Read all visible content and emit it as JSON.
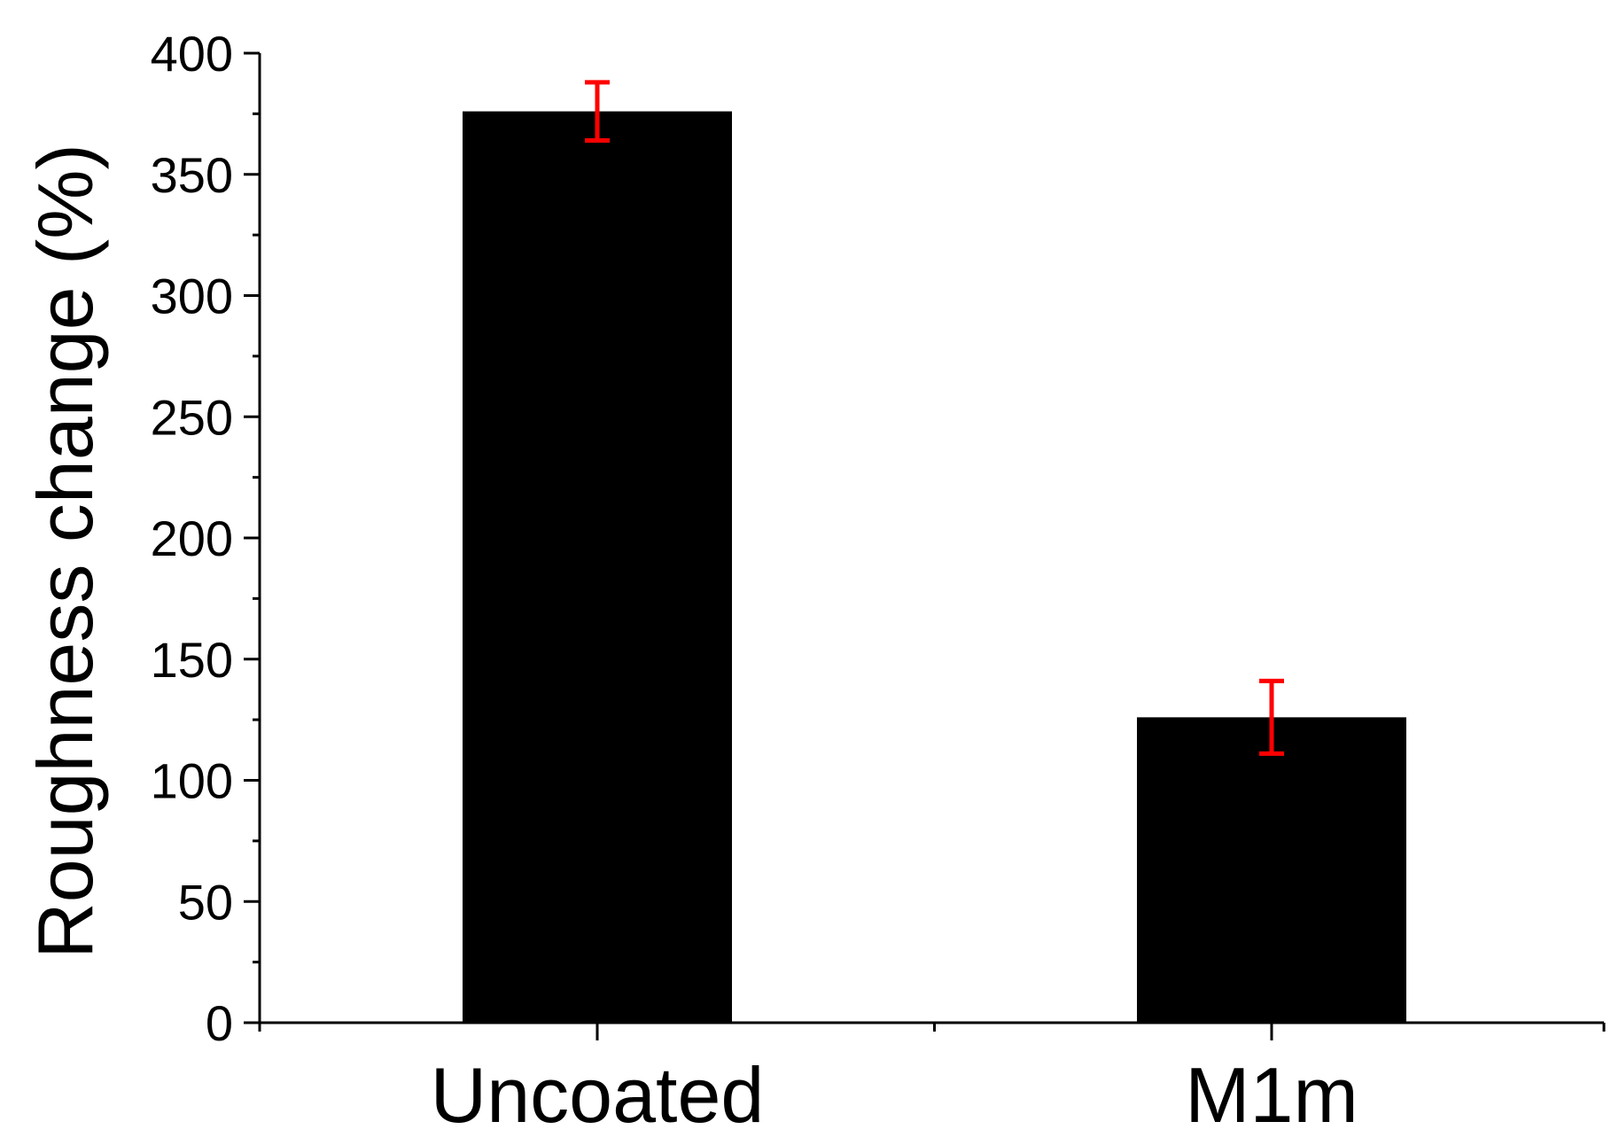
{
  "chart_data": {
    "type": "bar",
    "title": "",
    "xlabel": "",
    "ylabel": "Roughness change (%)",
    "categories": [
      "Uncoated",
      "M1m"
    ],
    "values": [
      376,
      126
    ],
    "error_low": [
      364,
      111
    ],
    "error_high": [
      388,
      141
    ],
    "ylim": [
      0,
      400
    ],
    "yticks": [
      0,
      50,
      100,
      150,
      200,
      250,
      300,
      350,
      400
    ],
    "y_minor_step": 25,
    "grid": false,
    "legend": "none",
    "bar_color": "#000000",
    "error_bar_color": "#ff0000"
  }
}
